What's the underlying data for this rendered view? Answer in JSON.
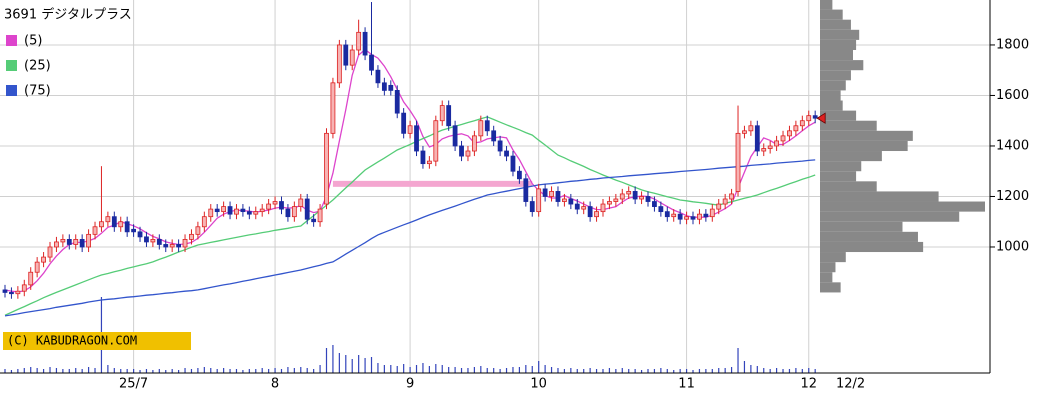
{
  "chart_data": {
    "type": "candlestick",
    "title": "3691 デジタルプラス",
    "copyright": "(C) KABUDRAGON.COM",
    "last_date": "12/2",
    "ylim": [
      501,
      1978
    ],
    "yticks": [
      1000,
      1200,
      1400,
      1600,
      1800
    ],
    "grid": true,
    "up_color": "#dd2222",
    "down_color": "#1a2aa0",
    "categories": [
      null,
      null,
      null,
      null,
      null,
      null,
      null,
      null,
      null,
      null,
      null,
      null,
      null,
      null,
      null,
      null,
      null,
      null,
      null,
      null,
      "25/7",
      null,
      null,
      null,
      null,
      null,
      null,
      null,
      null,
      null,
      null,
      null,
      null,
      null,
      null,
      null,
      null,
      null,
      null,
      null,
      null,
      null,
      "8",
      null,
      null,
      null,
      null,
      null,
      null,
      null,
      null,
      null,
      null,
      null,
      null,
      null,
      null,
      null,
      null,
      null,
      null,
      null,
      null,
      "9",
      null,
      null,
      null,
      null,
      null,
      null,
      null,
      null,
      null,
      null,
      null,
      null,
      null,
      null,
      null,
      null,
      null,
      null,
      null,
      "10",
      null,
      null,
      null,
      null,
      null,
      null,
      null,
      null,
      null,
      null,
      null,
      null,
      null,
      null,
      null,
      null,
      null,
      null,
      null,
      null,
      null,
      null,
      "11",
      null,
      null,
      null,
      null,
      null,
      null,
      null,
      null,
      null,
      null,
      null,
      null,
      null,
      null,
      null,
      null,
      null,
      null,
      "12",
      null
    ],
    "ohlc": [
      [
        830,
        850,
        800,
        820
      ],
      [
        820,
        840,
        795,
        815
      ],
      [
        815,
        845,
        795,
        825
      ],
      [
        825,
        870,
        805,
        850
      ],
      [
        850,
        920,
        830,
        900
      ],
      [
        900,
        960,
        880,
        940
      ],
      [
        940,
        980,
        920,
        960
      ],
      [
        960,
        1020,
        940,
        1000
      ],
      [
        1000,
        1040,
        980,
        1020
      ],
      [
        1020,
        1050,
        1000,
        1030
      ],
      [
        1030,
        1050,
        990,
        1010
      ],
      [
        1010,
        1050,
        990,
        1030
      ],
      [
        1030,
        1050,
        980,
        1000
      ],
      [
        1000,
        1070,
        980,
        1050
      ],
      [
        1050,
        1100,
        1030,
        1080
      ],
      [
        1080,
        1320,
        1060,
        1100
      ],
      [
        1100,
        1140,
        1080,
        1120
      ],
      [
        1120,
        1140,
        1060,
        1080
      ],
      [
        1080,
        1120,
        1060,
        1100
      ],
      [
        1100,
        1120,
        1040,
        1060
      ],
      [
        1070,
        1090,
        1040,
        1060
      ],
      [
        1060,
        1080,
        1020,
        1040
      ],
      [
        1040,
        1060,
        1000,
        1020
      ],
      [
        1020,
        1050,
        1000,
        1030
      ],
      [
        1030,
        1050,
        990,
        1010
      ],
      [
        1010,
        1030,
        980,
        1000
      ],
      [
        1000,
        1030,
        980,
        1010
      ],
      [
        1010,
        1030,
        980,
        1000
      ],
      [
        1000,
        1050,
        980,
        1030
      ],
      [
        1030,
        1070,
        1010,
        1050
      ],
      [
        1050,
        1100,
        1030,
        1080
      ],
      [
        1080,
        1140,
        1060,
        1120
      ],
      [
        1120,
        1170,
        1100,
        1150
      ],
      [
        1150,
        1170,
        1120,
        1140
      ],
      [
        1140,
        1180,
        1120,
        1160
      ],
      [
        1160,
        1180,
        1110,
        1130
      ],
      [
        1130,
        1170,
        1110,
        1150
      ],
      [
        1150,
        1170,
        1120,
        1140
      ],
      [
        1140,
        1160,
        1110,
        1130
      ],
      [
        1130,
        1160,
        1110,
        1140
      ],
      [
        1140,
        1170,
        1120,
        1150
      ],
      [
        1150,
        1190,
        1130,
        1170
      ],
      [
        1170,
        1200,
        1150,
        1180
      ],
      [
        1180,
        1200,
        1130,
        1150
      ],
      [
        1150,
        1170,
        1100,
        1120
      ],
      [
        1120,
        1180,
        1100,
        1160
      ],
      [
        1160,
        1210,
        1140,
        1190
      ],
      [
        1190,
        1210,
        1090,
        1110
      ],
      [
        1110,
        1130,
        1080,
        1100
      ],
      [
        1100,
        1170,
        1080,
        1150
      ],
      [
        1170,
        1470,
        1150,
        1450
      ],
      [
        1450,
        1670,
        1430,
        1650
      ],
      [
        1650,
        1820,
        1630,
        1800
      ],
      [
        1800,
        1820,
        1700,
        1720
      ],
      [
        1720,
        1800,
        1700,
        1780
      ],
      [
        1780,
        1900,
        1760,
        1850
      ],
      [
        1850,
        1870,
        1740,
        1760
      ],
      [
        1760,
        1970,
        1680,
        1700
      ],
      [
        1700,
        1720,
        1630,
        1650
      ],
      [
        1650,
        1670,
        1600,
        1620
      ],
      [
        1640,
        1660,
        1600,
        1620
      ],
      [
        1620,
        1640,
        1510,
        1530
      ],
      [
        1530,
        1550,
        1430,
        1450
      ],
      [
        1450,
        1500,
        1430,
        1480
      ],
      [
        1480,
        1500,
        1360,
        1380
      ],
      [
        1380,
        1400,
        1310,
        1330
      ],
      [
        1330,
        1360,
        1310,
        1340
      ],
      [
        1340,
        1520,
        1320,
        1500
      ],
      [
        1500,
        1580,
        1480,
        1560
      ],
      [
        1560,
        1580,
        1460,
        1480
      ],
      [
        1480,
        1500,
        1380,
        1400
      ],
      [
        1400,
        1420,
        1340,
        1360
      ],
      [
        1360,
        1400,
        1340,
        1380
      ],
      [
        1380,
        1460,
        1360,
        1440
      ],
      [
        1440,
        1520,
        1420,
        1500
      ],
      [
        1500,
        1520,
        1440,
        1460
      ],
      [
        1460,
        1480,
        1400,
        1420
      ],
      [
        1420,
        1440,
        1360,
        1380
      ],
      [
        1380,
        1400,
        1340,
        1360
      ],
      [
        1360,
        1380,
        1280,
        1300
      ],
      [
        1300,
        1320,
        1250,
        1270
      ],
      [
        1270,
        1290,
        1160,
        1180
      ],
      [
        1180,
        1200,
        1120,
        1140
      ],
      [
        1140,
        1250,
        1120,
        1230
      ],
      [
        1230,
        1250,
        1180,
        1200
      ],
      [
        1200,
        1240,
        1180,
        1220
      ],
      [
        1220,
        1240,
        1160,
        1180
      ],
      [
        1180,
        1210,
        1160,
        1190
      ],
      [
        1190,
        1210,
        1150,
        1170
      ],
      [
        1170,
        1190,
        1130,
        1150
      ],
      [
        1150,
        1180,
        1130,
        1160
      ],
      [
        1160,
        1180,
        1100,
        1120
      ],
      [
        1120,
        1160,
        1100,
        1140
      ],
      [
        1140,
        1190,
        1120,
        1170
      ],
      [
        1170,
        1200,
        1150,
        1180
      ],
      [
        1180,
        1210,
        1160,
        1190
      ],
      [
        1190,
        1230,
        1170,
        1210
      ],
      [
        1210,
        1240,
        1190,
        1220
      ],
      [
        1220,
        1240,
        1170,
        1190
      ],
      [
        1190,
        1220,
        1170,
        1200
      ],
      [
        1200,
        1220,
        1160,
        1180
      ],
      [
        1180,
        1200,
        1140,
        1160
      ],
      [
        1160,
        1180,
        1120,
        1140
      ],
      [
        1140,
        1160,
        1100,
        1120
      ],
      [
        1120,
        1150,
        1100,
        1130
      ],
      [
        1130,
        1150,
        1090,
        1110
      ],
      [
        1110,
        1140,
        1090,
        1120
      ],
      [
        1120,
        1140,
        1090,
        1110
      ],
      [
        1110,
        1150,
        1090,
        1130
      ],
      [
        1130,
        1150,
        1100,
        1120
      ],
      [
        1120,
        1170,
        1100,
        1150
      ],
      [
        1150,
        1190,
        1130,
        1170
      ],
      [
        1170,
        1210,
        1150,
        1190
      ],
      [
        1190,
        1230,
        1170,
        1210
      ],
      [
        1220,
        1560,
        1200,
        1450
      ],
      [
        1450,
        1480,
        1430,
        1460
      ],
      [
        1460,
        1500,
        1440,
        1480
      ],
      [
        1480,
        1500,
        1360,
        1380
      ],
      [
        1380,
        1410,
        1360,
        1390
      ],
      [
        1390,
        1420,
        1370,
        1400
      ],
      [
        1400,
        1440,
        1380,
        1420
      ],
      [
        1420,
        1460,
        1400,
        1440
      ],
      [
        1440,
        1480,
        1420,
        1460
      ],
      [
        1460,
        1500,
        1440,
        1480
      ],
      [
        1480,
        1520,
        1460,
        1500
      ],
      [
        1500,
        1540,
        1480,
        1520
      ],
      [
        1520,
        1540,
        1490,
        1510
      ]
    ],
    "volume": [
      4,
      3,
      4,
      5,
      6,
      5,
      4,
      6,
      5,
      4,
      4,
      5,
      4,
      6,
      5,
      76,
      8,
      5,
      4,
      4,
      4,
      3,
      4,
      3,
      4,
      3,
      4,
      3,
      5,
      4,
      5,
      6,
      5,
      4,
      5,
      4,
      4,
      3,
      4,
      4,
      5,
      4,
      5,
      4,
      6,
      5,
      6,
      5,
      4,
      8,
      25,
      28,
      20,
      18,
      14,
      18,
      15,
      16,
      10,
      8,
      8,
      7,
      9,
      6,
      8,
      10,
      7,
      9,
      8,
      6,
      6,
      5,
      5,
      6,
      7,
      5,
      5,
      4,
      5,
      6,
      6,
      8,
      7,
      12,
      8,
      6,
      5,
      4,
      5,
      4,
      4,
      5,
      4,
      4,
      5,
      4,
      5,
      4,
      4,
      3,
      4,
      4,
      5,
      4,
      3,
      4,
      4,
      3,
      4,
      4,
      4,
      5,
      5,
      6,
      25,
      12,
      8,
      7,
      5,
      4,
      5,
      4,
      4,
      5,
      4,
      5,
      4
    ],
    "series": [
      {
        "name": "(5)",
        "color": "#dd44cc",
        "values": [
          830,
          825,
          822,
          826,
          842,
          866,
          896,
          933,
          964,
          990,
          1010,
          1018,
          1018,
          1024,
          1034,
          1054,
          1078,
          1086,
          1100,
          1092,
          1084,
          1072,
          1056,
          1042,
          1032,
          1020,
          1014,
          1010,
          1012,
          1018,
          1034,
          1058,
          1086,
          1114,
          1130,
          1140,
          1146,
          1144,
          1142,
          1138,
          1142,
          1146,
          1154,
          1158,
          1154,
          1156,
          1164,
          1146,
          1136,
          1142,
          1202,
          1292,
          1420,
          1544,
          1680,
          1760,
          1782,
          1762,
          1748,
          1716,
          1674,
          1624,
          1574,
          1540,
          1500,
          1438,
          1396,
          1406,
          1428,
          1438,
          1444,
          1448,
          1440,
          1412,
          1416,
          1428,
          1432,
          1436,
          1432,
          1384,
          1346,
          1298,
          1250,
          1224,
          1204,
          1194,
          1194,
          1204,
          1192,
          1182,
          1170,
          1158,
          1148,
          1148,
          1154,
          1160,
          1178,
          1194,
          1198,
          1202,
          1200,
          1190,
          1174,
          1160,
          1146,
          1136,
          1124,
          1118,
          1118,
          1118,
          1126,
          1138,
          1152,
          1170,
          1234,
          1296,
          1358,
          1396,
          1432,
          1422,
          1406,
          1406,
          1422,
          1440,
          1460,
          1480,
          1494
        ]
      },
      {
        "name": "(25)",
        "color": "#55cc77",
        "values": [
          730,
          741,
          753,
          764,
          776,
          787,
          799,
          810,
          820,
          830,
          840,
          850,
          860,
          870,
          880,
          889,
          895,
          902,
          908,
          915,
          921,
          928,
          934,
          941,
          951,
          960,
          970,
          980,
          989,
          999,
          1008,
          1013,
          1018,
          1023,
          1028,
          1033,
          1038,
          1043,
          1048,
          1052,
          1057,
          1061,
          1066,
          1070,
          1074,
          1079,
          1083,
          1104,
          1124,
          1145,
          1165,
          1186,
          1210,
          1234,
          1257,
          1281,
          1305,
          1321,
          1337,
          1352,
          1368,
          1384,
          1395,
          1406,
          1418,
          1429,
          1440,
          1452,
          1463,
          1470,
          1478,
          1485,
          1493,
          1500,
          1508,
          1515,
          1505,
          1494,
          1484,
          1474,
          1464,
          1453,
          1443,
          1423,
          1404,
          1384,
          1364,
          1353,
          1341,
          1330,
          1319,
          1307,
          1296,
          1285,
          1275,
          1265,
          1256,
          1246,
          1236,
          1226,
          1219,
          1213,
          1206,
          1199,
          1193,
          1186,
          1183,
          1179,
          1176,
          1173,
          1169,
          1166,
          1173,
          1179,
          1186,
          1193,
          1199,
          1206,
          1215,
          1224,
          1232,
          1241,
          1250,
          1259,
          1268,
          1276,
          1285
        ]
      },
      {
        "name": "(75)",
        "color": "#3355cc",
        "values": [
          727,
          731,
          735,
          740,
          744,
          748,
          752,
          756,
          761,
          765,
          769,
          773,
          777,
          782,
          786,
          790,
          793,
          795,
          798,
          801,
          803,
          806,
          809,
          811,
          814,
          817,
          819,
          822,
          825,
          827,
          830,
          835,
          840,
          845,
          850,
          854,
          859,
          864,
          869,
          874,
          879,
          884,
          889,
          894,
          899,
          904,
          909,
          915,
          922,
          928,
          935,
          941,
          956,
          972,
          987,
          1002,
          1017,
          1033,
          1048,
          1058,
          1068,
          1078,
          1088,
          1097,
          1107,
          1117,
          1127,
          1136,
          1145,
          1153,
          1162,
          1171,
          1180,
          1189,
          1197,
          1206,
          1211,
          1216,
          1221,
          1226,
          1231,
          1236,
          1241,
          1246,
          1249,
          1251,
          1254,
          1257,
          1260,
          1262,
          1265,
          1268,
          1270,
          1273,
          1275,
          1277,
          1279,
          1282,
          1284,
          1286,
          1288,
          1290,
          1292,
          1294,
          1296,
          1299,
          1301,
          1303,
          1305,
          1307,
          1309,
          1312,
          1314,
          1316,
          1318,
          1320,
          1323,
          1325,
          1327,
          1329,
          1332,
          1334,
          1336,
          1338,
          1340,
          1343,
          1345
        ]
      }
    ],
    "profile": {
      "color": "#888888",
      "bins": [
        820,
        860,
        900,
        940,
        980,
        1020,
        1060,
        1100,
        1140,
        1180,
        1220,
        1260,
        1300,
        1340,
        1380,
        1420,
        1460,
        1500,
        1540,
        1580,
        1620,
        1660,
        1700,
        1740,
        1780,
        1820,
        1860,
        1900,
        1940,
        1980
      ],
      "values": [
        20,
        12,
        15,
        25,
        100,
        95,
        80,
        135,
        160,
        115,
        55,
        35,
        40,
        60,
        85,
        90,
        55,
        35,
        22,
        20,
        25,
        30,
        42,
        32,
        35,
        38,
        30,
        22,
        12
      ]
    },
    "band": {
      "value": 1250,
      "range": [
        51,
        82
      ],
      "color": "#f4a6d0"
    }
  }
}
